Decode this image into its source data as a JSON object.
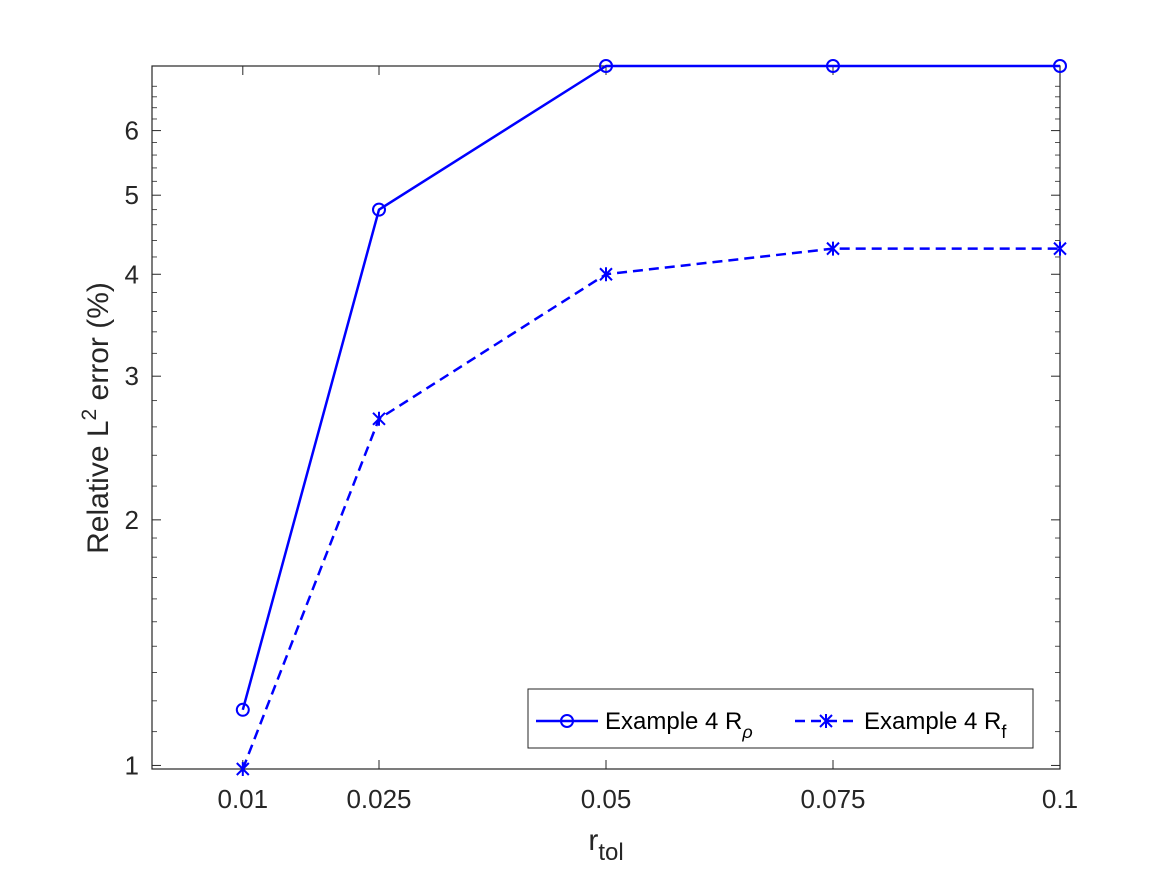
{
  "chart_data": {
    "type": "line",
    "x": [
      0.01,
      0.025,
      0.05,
      0.075,
      0.1
    ],
    "x_tick_labels": [
      "0.01",
      "0.025",
      "0.05",
      "0.075",
      "0.1"
    ],
    "xlim": [
      0,
      0.1
    ],
    "yscale": "log",
    "ylim": [
      0.99,
      7.2
    ],
    "y_ticks": [
      1,
      2,
      3,
      4,
      5,
      6
    ],
    "y_tick_labels": [
      "1",
      "2",
      "3",
      "4",
      "5",
      "6"
    ],
    "xlabel": {
      "base": "r",
      "sub": "tol"
    },
    "ylabel": {
      "pre": "Relative L",
      "sup": "2",
      "post": " error (%)"
    },
    "grid": false,
    "box": true,
    "legend_location": "bottom-right",
    "color": "#0000ff",
    "series": [
      {
        "legend": {
          "pre": "Example 4 R",
          "sub": "ρ"
        },
        "values": [
          1.17,
          4.8,
          7.2,
          7.2,
          7.2
        ],
        "line_style": "solid",
        "marker": "circle"
      },
      {
        "legend": {
          "pre": "Example 4 R",
          "sub": "f"
        },
        "values": [
          0.99,
          2.66,
          4.0,
          4.3,
          4.3
        ],
        "line_style": "dashed",
        "marker": "star"
      }
    ]
  }
}
